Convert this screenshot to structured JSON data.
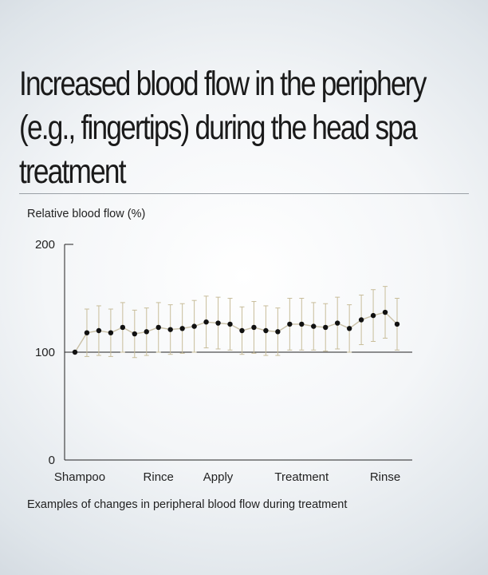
{
  "title": "Increased blood flow in the periphery (e.g., fingertips) during the head spa treatment",
  "colors": {
    "axis": "#222222",
    "line": "#c9c0a6",
    "errorbar": "#c8bd9a",
    "point": "#111111"
  },
  "chart_data": {
    "type": "line",
    "title": "Increased blood flow in the periphery (e.g., fingertips) during the head spa treatment",
    "ylabel": "Relative blood flow (%)",
    "xlabel": "",
    "caption": "Examples of changes in peripheral blood flow during treatment",
    "ylim": [
      0,
      200
    ],
    "yticks": [
      0,
      100,
      200
    ],
    "reference_line": 100,
    "grid": false,
    "x_phase_labels": [
      {
        "label": "Shampoo",
        "index": 0
      },
      {
        "label": "Rince",
        "index": 7
      },
      {
        "label": "Apply",
        "index": 12
      },
      {
        "label": "Treatment",
        "index": 19
      },
      {
        "label": "Rinse",
        "index": 26
      }
    ],
    "series": [
      {
        "values": [
          100,
          118,
          120,
          118,
          123,
          117,
          119,
          123,
          121,
          122,
          124,
          128,
          127,
          126,
          120,
          123,
          120,
          119,
          126,
          126,
          124,
          123,
          127,
          122,
          130,
          134,
          137,
          126
        ],
        "error": [
          0,
          22,
          23,
          22,
          23,
          22,
          22,
          23,
          23,
          23,
          24,
          24,
          24,
          24,
          22,
          24,
          23,
          22,
          24,
          24,
          22,
          22,
          24,
          22,
          23,
          24,
          24,
          24
        ]
      }
    ]
  }
}
